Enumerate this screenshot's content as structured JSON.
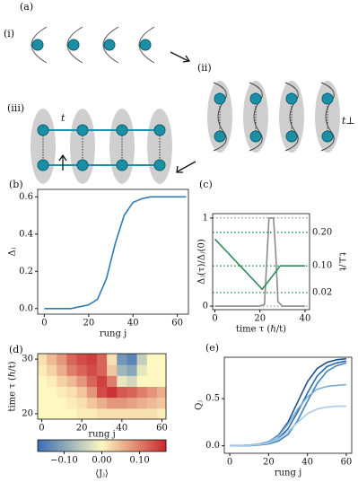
{
  "diagram": {
    "panel_label": "(a)",
    "stages": [
      "(i)",
      "(ii)",
      "(iii)"
    ],
    "hopping_labels": [
      "t",
      "t⊥"
    ]
  },
  "chart_data": [
    {
      "type": "line",
      "panel_label": "(b)",
      "xlabel": "rung j",
      "ylabel": "Δⱼ",
      "x": [
        0,
        4,
        8,
        12,
        16,
        20,
        24,
        28,
        32,
        36,
        40,
        44,
        48,
        52,
        56,
        60,
        64
      ],
      "series": [
        {
          "color": "#2f7bb6",
          "values": [
            0,
            0,
            0,
            0,
            0.01,
            0.02,
            0.05,
            0.16,
            0.35,
            0.5,
            0.57,
            0.59,
            0.6,
            0.6,
            0.6,
            0.6,
            0.6
          ]
        }
      ],
      "xlim": [
        -3,
        65
      ],
      "xticks": [
        0,
        20,
        40,
        60
      ],
      "ylim": [
        -0.03,
        0.64
      ],
      "yticks": [
        {
          "value": 0,
          "label": "0.0"
        },
        {
          "value": 0.2,
          "label": "0.2"
        },
        {
          "value": 0.4,
          "label": "0.4"
        },
        {
          "value": 0.6,
          "label": "0.6"
        }
      ]
    },
    {
      "type": "line",
      "panel_label": "(c)",
      "xlabel": "time τ (ℏ/t)",
      "ylabel": "Δⱼ(τ)/Δⱼ(0)",
      "y2label": "t⊥/t",
      "ylabel_color": "#888888",
      "y2label_color": "#2e8b57",
      "series": [
        {
          "color": "#8c8c8c",
          "x": [
            0,
            5,
            10,
            15,
            20,
            22,
            23,
            24,
            26,
            27,
            28,
            30,
            35,
            40
          ],
          "values": [
            0,
            0,
            0,
            0,
            0,
            0.02,
            0.5,
            1,
            1,
            0.6,
            0.05,
            0,
            0,
            0
          ]
        },
        {
          "color": "#2e8b57",
          "axis": "y2",
          "x": [
            0,
            21,
            29,
            40
          ],
          "values": [
            0.18,
            0.03,
            0.1,
            0.1
          ]
        }
      ],
      "xlim": [
        -1,
        42
      ],
      "xticks": [
        0,
        20,
        40
      ],
      "ylim": [
        -0.04,
        1.05
      ],
      "yticks": [
        0,
        1
      ],
      "ygrid_color": "#8c8c8c",
      "y2lim": [
        -0.031,
        0.256
      ],
      "y2ticks": [
        {
          "value": 0.2,
          "label": "0.20"
        },
        {
          "value": 0.1,
          "label": "0.10"
        },
        0.02
      ],
      "y2grid_color": "#2e8b57"
    },
    {
      "type": "heatmap",
      "panel_label": "(d)",
      "xlabel": "rung j",
      "ylabel": "time τ (ℏ/t)",
      "colorbar_label": "⟨Jⱼ⟩",
      "x": [
        0,
        5,
        10,
        15,
        20,
        25,
        30,
        35,
        40,
        45,
        50,
        55,
        60
      ],
      "y": [
        20,
        22,
        24,
        26,
        28,
        30
      ],
      "z": [
        [
          0,
          0,
          0,
          0,
          0.01,
          0.01,
          0.02,
          0.02,
          0.02,
          0.02,
          0.02,
          0.02,
          0.01
        ],
        [
          0,
          0,
          0,
          0.01,
          0.02,
          0.04,
          0.06,
          0.08,
          0.08,
          0.07,
          0.06,
          0.05,
          0.04
        ],
        [
          0,
          0,
          0.01,
          0.02,
          0.04,
          0.08,
          0.14,
          0.16,
          0.13,
          0.12,
          0.1,
          0.08,
          0.06
        ],
        [
          0,
          0.01,
          0.03,
          0.05,
          0.08,
          0.12,
          0.15,
          0.1,
          -0.02,
          -0.04,
          0,
          0,
          0
        ],
        [
          0.01,
          0.03,
          0.06,
          0.1,
          0.12,
          0.14,
          0.12,
          0.04,
          -0.08,
          -0.1,
          -0.02,
          0,
          0
        ],
        [
          0.02,
          0.05,
          0.08,
          0.12,
          0.14,
          0.15,
          0.12,
          0.02,
          -0.12,
          -0.14,
          -0.05,
          0,
          0
        ]
      ],
      "zlim": [
        -0.17,
        0.17
      ],
      "colors": [
        "#3a6db5",
        "#fdf7c0",
        "#c8282d"
      ],
      "cticks": [
        {
          "value": -0.1,
          "label": "−0.10"
        },
        {
          "value": 0,
          "label": "0.00"
        },
        {
          "value": 0.1,
          "label": "0.10"
        }
      ],
      "xlim": [
        -2,
        62
      ],
      "xticks": [
        0,
        20,
        40,
        60
      ],
      "ylim": [
        19,
        31
      ],
      "yticks": [
        20,
        30
      ]
    },
    {
      "type": "line",
      "panel_label": "(e)",
      "xlabel": "rung j",
      "ylabel": "Qⱼ",
      "x": [
        0,
        5,
        10,
        15,
        20,
        25,
        30,
        35,
        40,
        45,
        50,
        55,
        60
      ],
      "series": [
        {
          "color": "#1f4e8c",
          "values": [
            0,
            0.002,
            0.006,
            0.017,
            0.044,
            0.11,
            0.25,
            0.465,
            0.68,
            0.82,
            0.885,
            0.913,
            0.924
          ]
        },
        {
          "color": "#2a68a8",
          "values": [
            0,
            0,
            0.004,
            0.011,
            0.029,
            0.075,
            0.18,
            0.36,
            0.56,
            0.74,
            0.84,
            0.88,
            0.9
          ]
        },
        {
          "color": "#3d84c0",
          "values": [
            0,
            0,
            0,
            0.007,
            0.019,
            0.05,
            0.12,
            0.27,
            0.47,
            0.66,
            0.79,
            0.85,
            0.88
          ]
        },
        {
          "color": "#7aaed6",
          "values": [
            0,
            0.002,
            0.007,
            0.018,
            0.045,
            0.1,
            0.23,
            0.39,
            0.52,
            0.6,
            0.63,
            0.64,
            0.65
          ]
        },
        {
          "color": "#a9cbe6",
          "values": [
            0,
            0.001,
            0.004,
            0.012,
            0.029,
            0.07,
            0.15,
            0.25,
            0.34,
            0.39,
            0.41,
            0.42,
            0.42
          ]
        }
      ],
      "xlim": [
        -2.8,
        62.8
      ],
      "xticks": [
        0,
        20,
        40,
        60
      ],
      "ylim": [
        -0.08,
        0.94
      ],
      "yticks": [
        {
          "value": 0,
          "label": "0.0"
        },
        {
          "value": 0.5,
          "label": "0.5"
        }
      ]
    }
  ]
}
